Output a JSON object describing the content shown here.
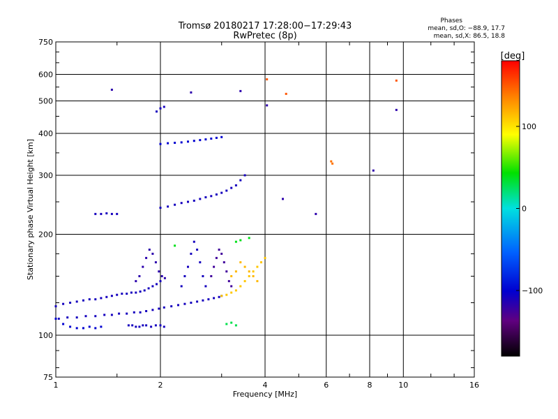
{
  "chart_data": {
    "type": "scatter",
    "title": "Tromsø 20180217 17:28:00−17:29:43",
    "subtitle": "RwPretec (8p)",
    "xlabel": "Frequency [MHz]",
    "ylabel": "Stationary phase Virtual Height [km]",
    "x_scale": "log",
    "y_scale": "log",
    "xlim": [
      1,
      16
    ],
    "ylim": [
      75,
      750
    ],
    "x_ticks": [
      "1",
      "2",
      "4",
      "6",
      "8",
      "10",
      "16"
    ],
    "y_ticks": [
      "75",
      "100",
      "200",
      "300",
      "400",
      "500",
      "600",
      "750"
    ],
    "grid": true,
    "stats": {
      "heading": "Phases",
      "line_o": "mean, sd,O: −88.9, 17.7",
      "line_x": "mean, sd,X:  86.5, 18.8"
    },
    "colorbar": {
      "label": "[deg]",
      "range": [
        -180,
        180
      ],
      "ticks": [
        "100",
        "0",
        "−100"
      ],
      "colors": [
        "#ff0000",
        "#ff8000",
        "#ffff00",
        "#00e000",
        "#00e0e0",
        "#0060ff",
        "#0000d0",
        "#600080",
        "#000000"
      ]
    },
    "series": [
      {
        "x": [
          1.02,
          1.08,
          1.15,
          1.22,
          1.3,
          1.38,
          1.45,
          1.52,
          1.6,
          1.68,
          1.75,
          1.82,
          1.9,
          1.98,
          2.05,
          2.15,
          2.25,
          2.35,
          2.45,
          2.55,
          2.65,
          2.75,
          2.85,
          2.95,
          3.0
        ],
        "y": [
          112,
          113,
          113,
          114,
          114,
          115,
          115,
          116,
          116,
          117,
          117,
          118,
          119,
          120,
          121,
          122,
          123,
          124,
          125,
          126,
          127,
          128,
          129,
          130,
          131
        ],
        "phase": -100
      },
      {
        "x": [
          1.0,
          1.05,
          1.1,
          1.15,
          1.2,
          1.25,
          1.3,
          1.35,
          1.4,
          1.45,
          1.5,
          1.55,
          1.6,
          1.65,
          1.7,
          1.75,
          1.8,
          1.85,
          1.9,
          1.95,
          2.0
        ],
        "y": [
          122,
          124,
          125,
          126,
          127,
          128,
          128,
          129,
          130,
          131,
          132,
          133,
          133,
          134,
          134,
          135,
          136,
          138,
          140,
          142,
          145
        ],
        "phase": -100
      },
      {
        "x": [
          1.0,
          1.05,
          1.1,
          1.15,
          1.2,
          1.25,
          1.3,
          1.35
        ],
        "y": [
          112,
          108,
          106,
          105,
          105,
          106,
          105,
          106
        ],
        "phase": -90
      },
      {
        "x": [
          1.62,
          1.66,
          1.7,
          1.74,
          1.78,
          1.82,
          1.88,
          1.94,
          2.0,
          2.05
        ],
        "y": [
          107,
          107,
          106,
          106,
          107,
          107,
          106,
          107,
          107,
          106
        ],
        "phase": -100
      },
      {
        "x": [
          1.7,
          1.74,
          1.78,
          1.82,
          1.86,
          1.9,
          1.94,
          1.98,
          2.02,
          2.06
        ],
        "y": [
          145,
          150,
          160,
          170,
          180,
          175,
          165,
          155,
          150,
          148
        ],
        "phase": -110
      },
      {
        "x": [
          2.3,
          2.35,
          2.4,
          2.45,
          2.5,
          2.55,
          2.6,
          2.65,
          2.7
        ],
        "y": [
          140,
          150,
          160,
          175,
          190,
          180,
          165,
          150,
          140
        ],
        "phase": -100
      },
      {
        "x": [
          2.8,
          2.85,
          2.9,
          2.95,
          3.0,
          3.05,
          3.1,
          3.15,
          3.2
        ],
        "y": [
          150,
          160,
          170,
          180,
          175,
          165,
          155,
          145,
          140
        ],
        "phase": -120
      },
      {
        "x": [
          3.0,
          3.1,
          3.2,
          3.3,
          3.4,
          3.5,
          3.6,
          3.7,
          3.8,
          3.9,
          4.0
        ],
        "y": [
          131,
          132,
          134,
          136,
          140,
          145,
          150,
          155,
          160,
          165,
          170
        ],
        "phase": 110
      },
      {
        "x": [
          3.2,
          3.3,
          3.4,
          3.5,
          3.6,
          3.7,
          3.8
        ],
        "y": [
          150,
          155,
          165,
          160,
          155,
          150,
          145
        ],
        "phase": 115
      },
      {
        "x": [
          1.3,
          1.35,
          1.4,
          1.45,
          1.5
        ],
        "y": [
          230,
          230,
          231,
          230,
          230
        ],
        "phase": -100
      },
      {
        "x": [
          2.0,
          2.1,
          2.2,
          2.3,
          2.4,
          2.5,
          2.6,
          2.7,
          2.8,
          2.9,
          3.0,
          3.1,
          3.2,
          3.3,
          3.4,
          3.5
        ],
        "y": [
          240,
          242,
          245,
          248,
          250,
          252,
          255,
          258,
          260,
          263,
          266,
          270,
          275,
          280,
          290,
          300
        ],
        "phase": -100
      },
      {
        "x": [
          2.0,
          2.1,
          2.2,
          2.3,
          2.4,
          2.5,
          2.6,
          2.7,
          2.8,
          2.9,
          3.0
        ],
        "y": [
          372,
          374,
          375,
          376,
          378,
          380,
          382,
          384,
          386,
          388,
          390
        ],
        "phase": -90
      },
      {
        "x": [
          1.95,
          2.0,
          2.05
        ],
        "y": [
          465,
          475,
          480
        ],
        "phase": -100
      },
      {
        "x": [
          1.45,
          2.45,
          3.4,
          4.05,
          9.55
        ],
        "y": [
          540,
          530,
          535,
          485,
          470
        ],
        "phase": -110
      },
      {
        "x": [
          4.05,
          4.6,
          9.55
        ],
        "y": [
          580,
          525,
          575
        ],
        "phase": 150
      },
      {
        "x": [
          6.2,
          6.25
        ],
        "y": [
          330,
          325
        ],
        "phase": 140
      },
      {
        "x": [
          8.2
        ],
        "y": [
          310
        ],
        "phase": -110
      },
      {
        "x": [
          4.5,
          5.6
        ],
        "y": [
          255,
          230
        ],
        "phase": -110
      },
      {
        "x": [
          2.2,
          3.3,
          3.4,
          3.6
        ],
        "y": [
          185,
          190,
          192,
          195
        ],
        "phase": 40
      },
      {
        "x": [
          3.1,
          3.2,
          3.3
        ],
        "y": [
          108,
          109,
          107
        ],
        "phase": 30
      }
    ]
  }
}
